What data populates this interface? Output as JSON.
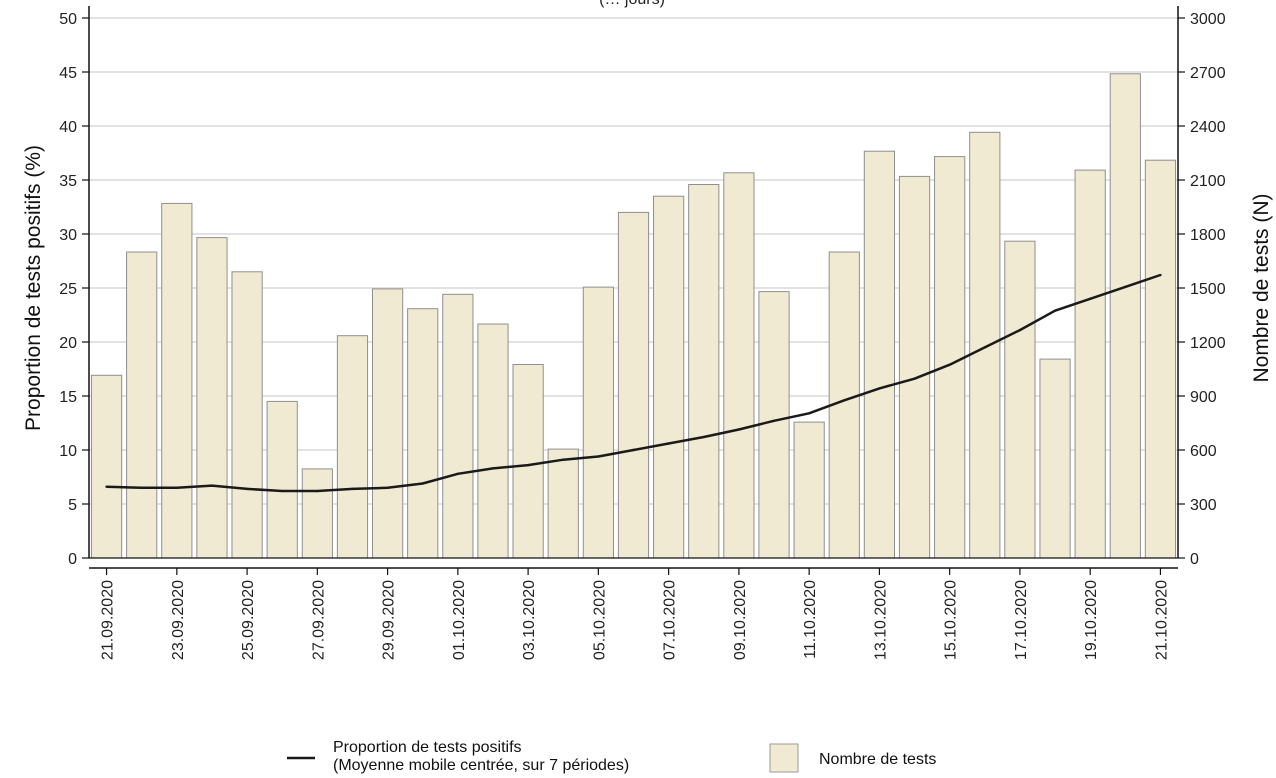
{
  "chart_data": {
    "type": "bar",
    "title": "(… jours)",
    "left_axis": {
      "label": "Proportion de tests positifs (%)",
      "ylim": [
        0,
        50
      ],
      "ticks": [
        0,
        5,
        10,
        15,
        20,
        25,
        30,
        35,
        40,
        45,
        50
      ]
    },
    "right_axis": {
      "label": "Nombre de tests (N)",
      "ylim": [
        0,
        3000
      ],
      "ticks": [
        0,
        300,
        600,
        900,
        1200,
        1500,
        1800,
        2100,
        2400,
        2700,
        3000
      ]
    },
    "x": [
      "21.09.2020",
      "22.09.2020",
      "23.09.2020",
      "24.09.2020",
      "25.09.2020",
      "26.09.2020",
      "27.09.2020",
      "28.09.2020",
      "29.09.2020",
      "30.09.2020",
      "01.10.2020",
      "02.10.2020",
      "03.10.2020",
      "04.10.2020",
      "05.10.2020",
      "06.10.2020",
      "07.10.2020",
      "08.10.2020",
      "09.10.2020",
      "10.10.2020",
      "11.10.2020",
      "12.10.2020",
      "13.10.2020",
      "14.10.2020",
      "15.10.2020",
      "16.10.2020",
      "17.10.2020",
      "18.10.2020",
      "19.10.2020",
      "20.10.2020",
      "21.10.2020"
    ],
    "x_tick_labels": [
      "21.09.2020",
      "23.09.2020",
      "25.09.2020",
      "27.09.2020",
      "29.09.2020",
      "01.10.2020",
      "03.10.2020",
      "05.10.2020",
      "07.10.2020",
      "09.10.2020",
      "11.10.2020",
      "13.10.2020",
      "15.10.2020",
      "17.10.2020",
      "19.10.2020",
      "21.10.2020"
    ],
    "grid": true,
    "legend_position": "bottom",
    "series": [
      {
        "name": "Nombre de tests",
        "type": "bar",
        "axis": "right",
        "color": "#f1ead3",
        "values": [
          1015,
          1700,
          1970,
          1780,
          1590,
          870,
          495,
          1235,
          1495,
          1385,
          1465,
          1300,
          1075,
          605,
          1505,
          1920,
          2010,
          2075,
          2140,
          1480,
          755,
          1700,
          2260,
          2120,
          2230,
          2365,
          1760,
          1105,
          2155,
          2690,
          2210
        ]
      },
      {
        "name": "Proportion de tests positifs",
        "name_line2": "(Moyenne mobile centrée, sur 7 périodes)",
        "type": "line",
        "axis": "left",
        "color": "#1a1a1a",
        "values": [
          6.6,
          6.5,
          6.5,
          6.7,
          6.4,
          6.2,
          6.2,
          6.4,
          6.5,
          6.9,
          7.8,
          8.3,
          8.6,
          9.1,
          9.4,
          10.0,
          10.6,
          11.2,
          11.9,
          12.7,
          13.4,
          14.6,
          15.7,
          16.6,
          17.9,
          19.5,
          21.1,
          22.9,
          24.0,
          25.1,
          26.2
        ]
      }
    ]
  }
}
